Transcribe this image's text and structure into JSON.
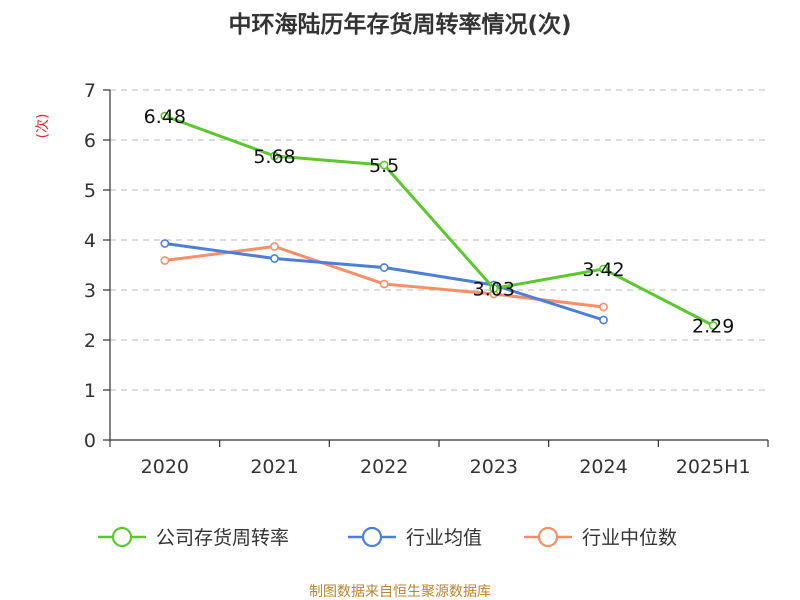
{
  "chart_data": {
    "type": "line",
    "title": "中环海陆历年存货周转率情况(次)",
    "ylabel": "(次)",
    "categories": [
      "2020",
      "2021",
      "2022",
      "2023",
      "2024",
      "2025H1"
    ],
    "ylim": [
      0,
      7
    ],
    "yticks": [
      0,
      1,
      2,
      3,
      4,
      5,
      6,
      7
    ],
    "grid": true,
    "legend_position": "bottom",
    "series": [
      {
        "name": "公司存货周转率",
        "color": "#5cc72e",
        "values": [
          6.48,
          5.68,
          5.5,
          3.03,
          3.42,
          2.29
        ],
        "labels": [
          "6.48",
          "5.68",
          "5.5",
          "3.03",
          "3.42",
          "2.29"
        ]
      },
      {
        "name": "行业均值",
        "color": "#4e7fd8",
        "values": [
          3.93,
          3.63,
          3.45,
          3.1,
          2.4,
          null
        ]
      },
      {
        "name": "行业中位数",
        "color": "#f5906a",
        "values": [
          3.59,
          3.87,
          3.12,
          2.92,
          2.66,
          null
        ]
      }
    ]
  },
  "source": "制图数据来自恒生聚源数据库"
}
